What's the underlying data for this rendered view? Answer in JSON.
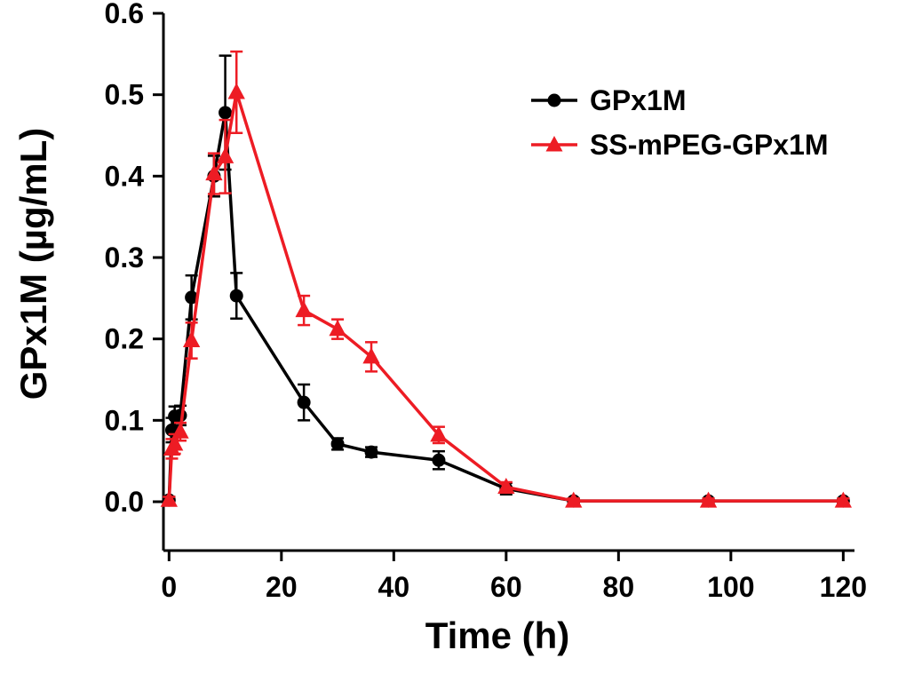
{
  "figure": {
    "background": "#ffffff"
  },
  "chart_data": {
    "type": "line",
    "title": "",
    "xlabel": "Time (h)",
    "ylabel": "GPx1M (µg/mL)",
    "xlim": [
      -1,
      122
    ],
    "ylim": [
      -0.06,
      0.6
    ],
    "xticks": [
      0,
      20,
      40,
      60,
      80,
      100,
      120
    ],
    "yticks": [
      0,
      0.1,
      0.2,
      0.3,
      0.4,
      0.5,
      0.6
    ],
    "grid": false,
    "legend_position": "upper right",
    "error_bars": true,
    "series": [
      {
        "name": "GPx1M",
        "color": "#000000",
        "marker": "circle",
        "x": [
          0,
          0.5,
          1,
          2,
          4,
          8,
          10,
          12,
          24,
          30,
          36,
          48,
          60,
          72,
          96,
          120
        ],
        "y": [
          0.002,
          0.088,
          0.105,
          0.106,
          0.251,
          0.4,
          0.478,
          0.253,
          0.122,
          0.071,
          0.061,
          0.051,
          0.016,
          0.001,
          0.001,
          0.001
        ],
        "yerr": [
          0.004,
          0.015,
          0.012,
          0.012,
          0.027,
          0.025,
          0.07,
          0.028,
          0.022,
          0.007,
          0.006,
          0.011,
          0.007,
          0.003,
          0.003,
          0.003
        ]
      },
      {
        "name": "SS-mPEG-GPx1M",
        "color": "#ed1c24",
        "marker": "triangle",
        "x": [
          0,
          0.5,
          1,
          2,
          4,
          8,
          10,
          12,
          24,
          30,
          36,
          48,
          60,
          72,
          96,
          120
        ],
        "y": [
          0.002,
          0.065,
          0.071,
          0.086,
          0.198,
          0.403,
          0.424,
          0.503,
          0.235,
          0.212,
          0.178,
          0.082,
          0.018,
          0.001,
          0.001,
          0.001
        ],
        "yerr": [
          0.004,
          0.012,
          0.012,
          0.011,
          0.022,
          0.025,
          0.045,
          0.05,
          0.018,
          0.012,
          0.018,
          0.01,
          0.006,
          0.003,
          0.003,
          0.003
        ]
      }
    ]
  }
}
